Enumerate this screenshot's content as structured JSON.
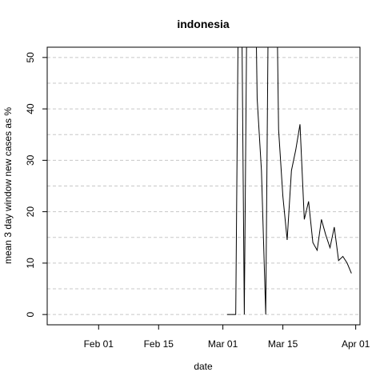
{
  "chart_data": {
    "type": "line",
    "title": "indonesia",
    "xlabel": "date",
    "ylabel": "mean  3  day window new cases as %",
    "xlim": [
      "2020-01-20",
      "2020-04-02"
    ],
    "ylim": [
      -2,
      52
    ],
    "x_ticks": [
      {
        "date": "2020-02-01",
        "label": "Feb 01"
      },
      {
        "date": "2020-02-15",
        "label": "Feb 15"
      },
      {
        "date": "2020-03-01",
        "label": "Mar 01"
      },
      {
        "date": "2020-03-15",
        "label": "Mar 15"
      },
      {
        "date": "2020-04-01",
        "label": "Apr 01"
      }
    ],
    "y_ticks": [
      0,
      10,
      20,
      30,
      40,
      50
    ],
    "y_minor_grid": [
      5,
      15,
      25,
      35,
      45
    ],
    "grid": true,
    "line_color": "#000000",
    "grid_color": "#c8c8c8",
    "series": [
      {
        "x": [
          "2020-03-02",
          "2020-03-03",
          "2020-03-04",
          "2020-03-05",
          "2020-03-06",
          "2020-03-07",
          "2020-03-08",
          "2020-03-09",
          "2020-03-10",
          "2020-03-11",
          "2020-03-12",
          "2020-03-13",
          "2020-03-14",
          "2020-03-15",
          "2020-03-16",
          "2020-03-17",
          "2020-03-18",
          "2020-03-19",
          "2020-03-20",
          "2020-03-21",
          "2020-03-22",
          "2020-03-23",
          "2020-03-24",
          "2020-03-25",
          "2020-03-26",
          "2020-03-27",
          "2020-03-28",
          "2020-03-29",
          "2020-03-30",
          "2020-03-31"
        ],
        "values": [
          0,
          0,
          0,
          100,
          0,
          100,
          100,
          42,
          28,
          0,
          100,
          100,
          36,
          23,
          14.5,
          28,
          32,
          37,
          18.5,
          22,
          14,
          12.5,
          18.5,
          15.5,
          13,
          17,
          10.5,
          11.3,
          10,
          8
        ]
      }
    ]
  }
}
